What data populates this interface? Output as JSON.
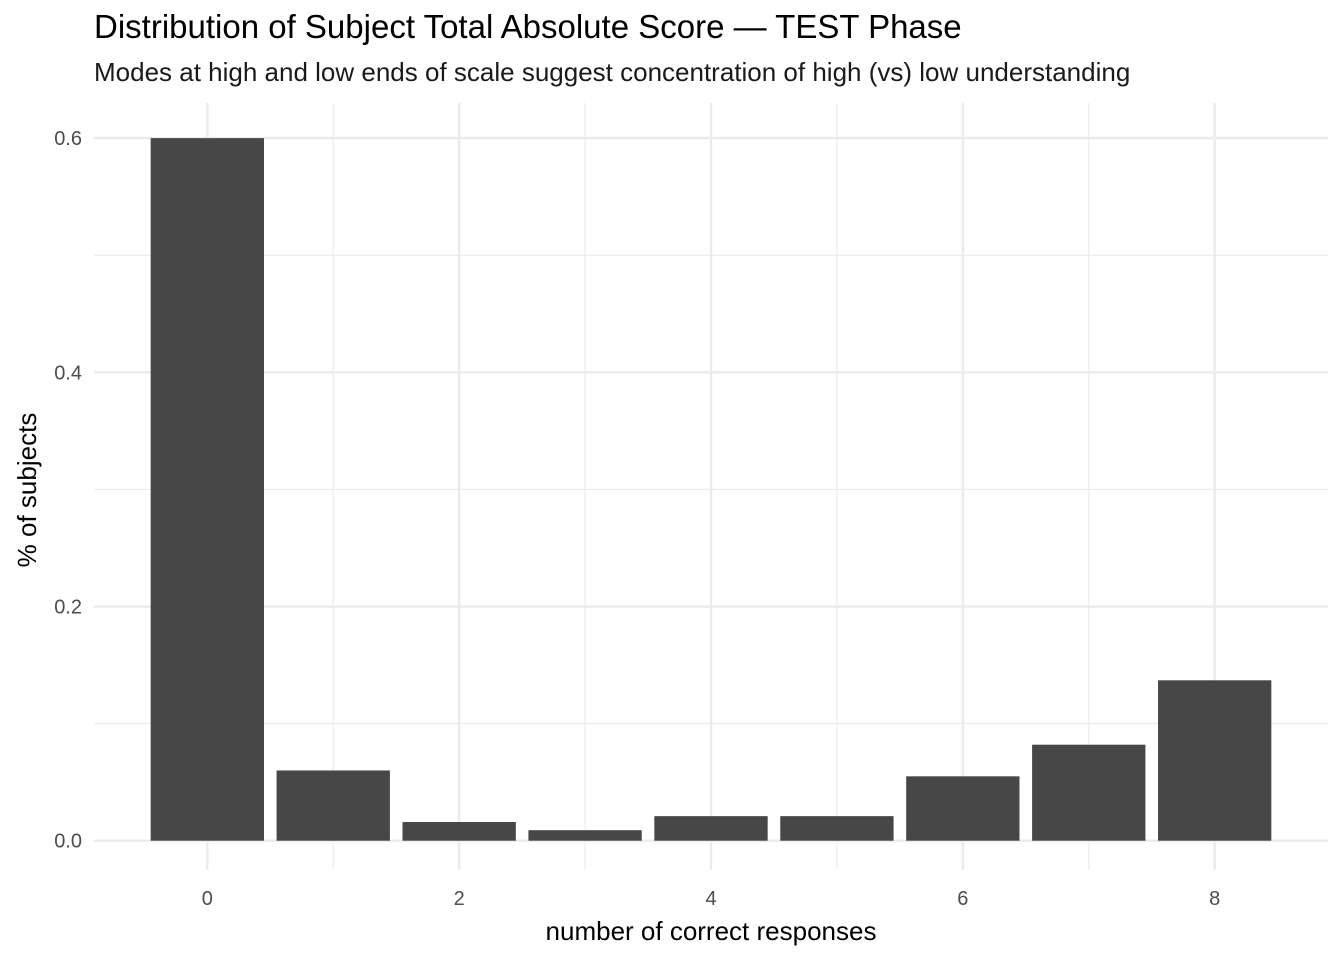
{
  "chart_data": {
    "type": "bar",
    "title": "Distribution of Subject Total Absolute Score — TEST Phase",
    "subtitle": "Modes at high and low ends of scale suggest concentration of high (vs) low understanding",
    "xlabel": "number of correct responses",
    "ylabel": "% of subjects",
    "x": [
      0,
      1,
      2,
      3,
      4,
      5,
      6,
      7,
      8
    ],
    "values": [
      0.6,
      0.06,
      0.016,
      0.009,
      0.021,
      0.021,
      0.055,
      0.082,
      0.137
    ],
    "xticks": [
      0,
      2,
      4,
      6,
      8
    ],
    "xtick_labels": [
      "0",
      "2",
      "4",
      "6",
      "8"
    ],
    "yticks": [
      0.0,
      0.2,
      0.4,
      0.6
    ],
    "ytick_labels": [
      "0.0",
      "0.2",
      "0.4",
      "0.6"
    ],
    "xlim": [
      -0.9,
      8.9
    ],
    "ylim": [
      -0.025,
      0.63
    ],
    "grid": true,
    "bar_color": "#474747",
    "grid_color": "#ebebeb"
  }
}
